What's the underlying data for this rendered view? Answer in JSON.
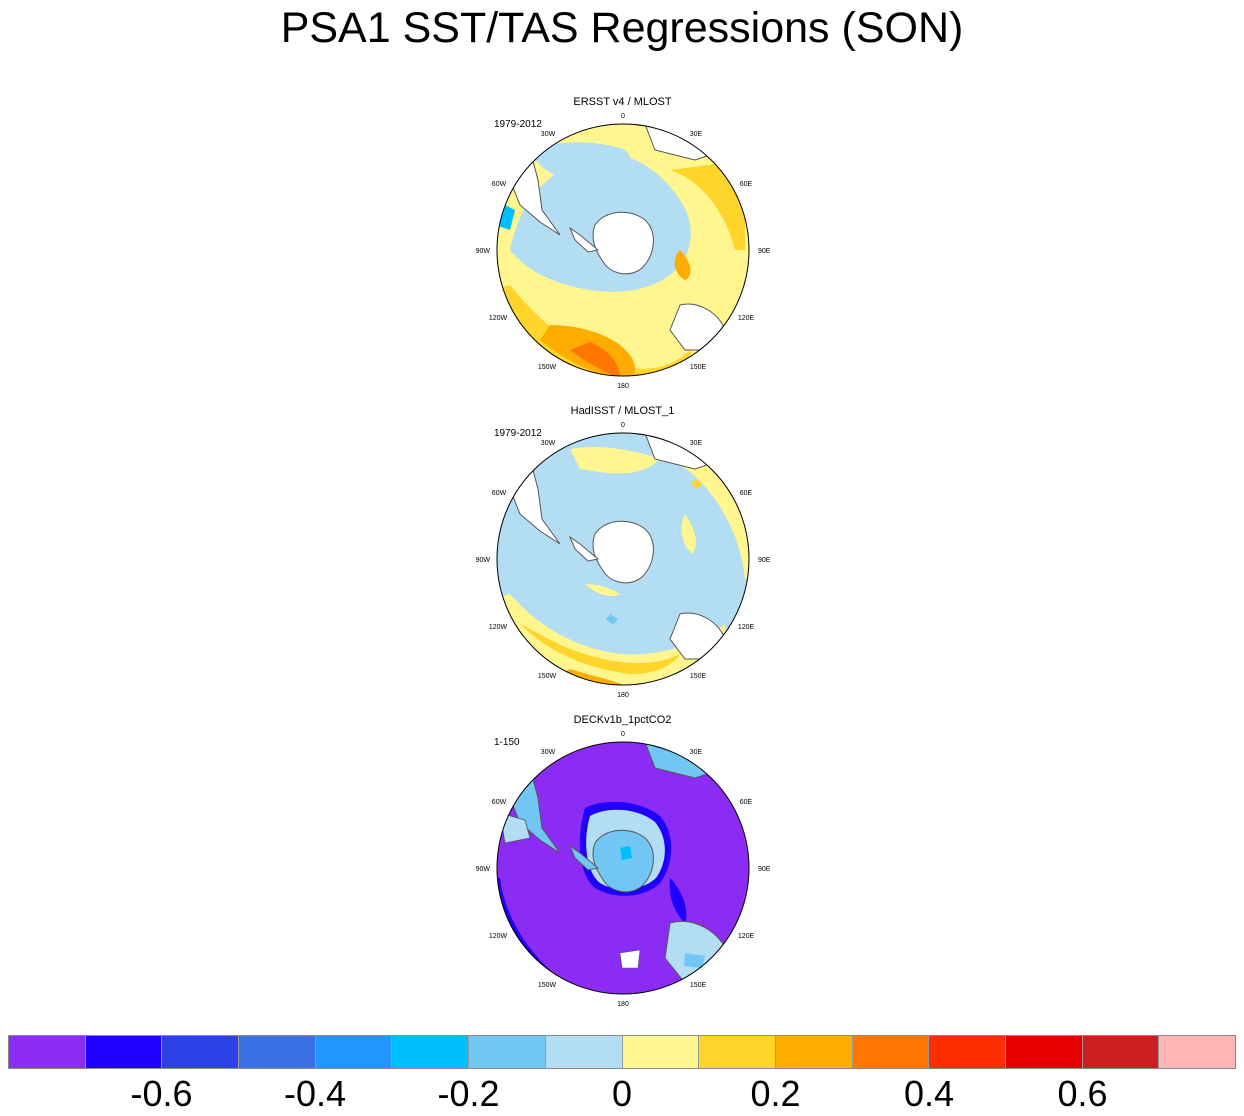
{
  "title": "PSA1 SST/TAS Regressions (SON)",
  "panels": [
    {
      "title": "ERSST v4 / MLOST",
      "period": "1979-2012",
      "style": "smooth"
    },
    {
      "title": "HadISST / MLOST_1",
      "period": "1979-2012",
      "style": "noisy"
    },
    {
      "title": "DECKv1b_1pctCO2",
      "period": "1-150",
      "style": "model"
    }
  ],
  "longitude_labels": {
    "top": "0",
    "bottom": "180",
    "lon_30w": "30W",
    "lon_30e": "30E",
    "lon_60w": "60W",
    "lon_60e": "60E",
    "lon_90w": "90W",
    "lon_90e": "90E",
    "lon_120w": "120W",
    "lon_120e": "120E",
    "lon_150w": "150W",
    "lon_150e": "150E"
  },
  "colorbar": {
    "colors": [
      "#8b2cf5",
      "#1f00ff",
      "#2d42e6",
      "#3a72e6",
      "#2196ff",
      "#00bfff",
      "#72c6f4",
      "#b3ddf2",
      "#fff68f",
      "#ffd42b",
      "#ffab00",
      "#ff7700",
      "#ff2e00",
      "#e60000",
      "#cc1f1f",
      "#ffb5b5"
    ],
    "labels": [
      "-0.6",
      "-0.4",
      "-0.2",
      "0",
      "0.2",
      "0.4",
      "0.6"
    ]
  },
  "colors": {
    "land": "#ffffff",
    "coast": "#555555"
  }
}
